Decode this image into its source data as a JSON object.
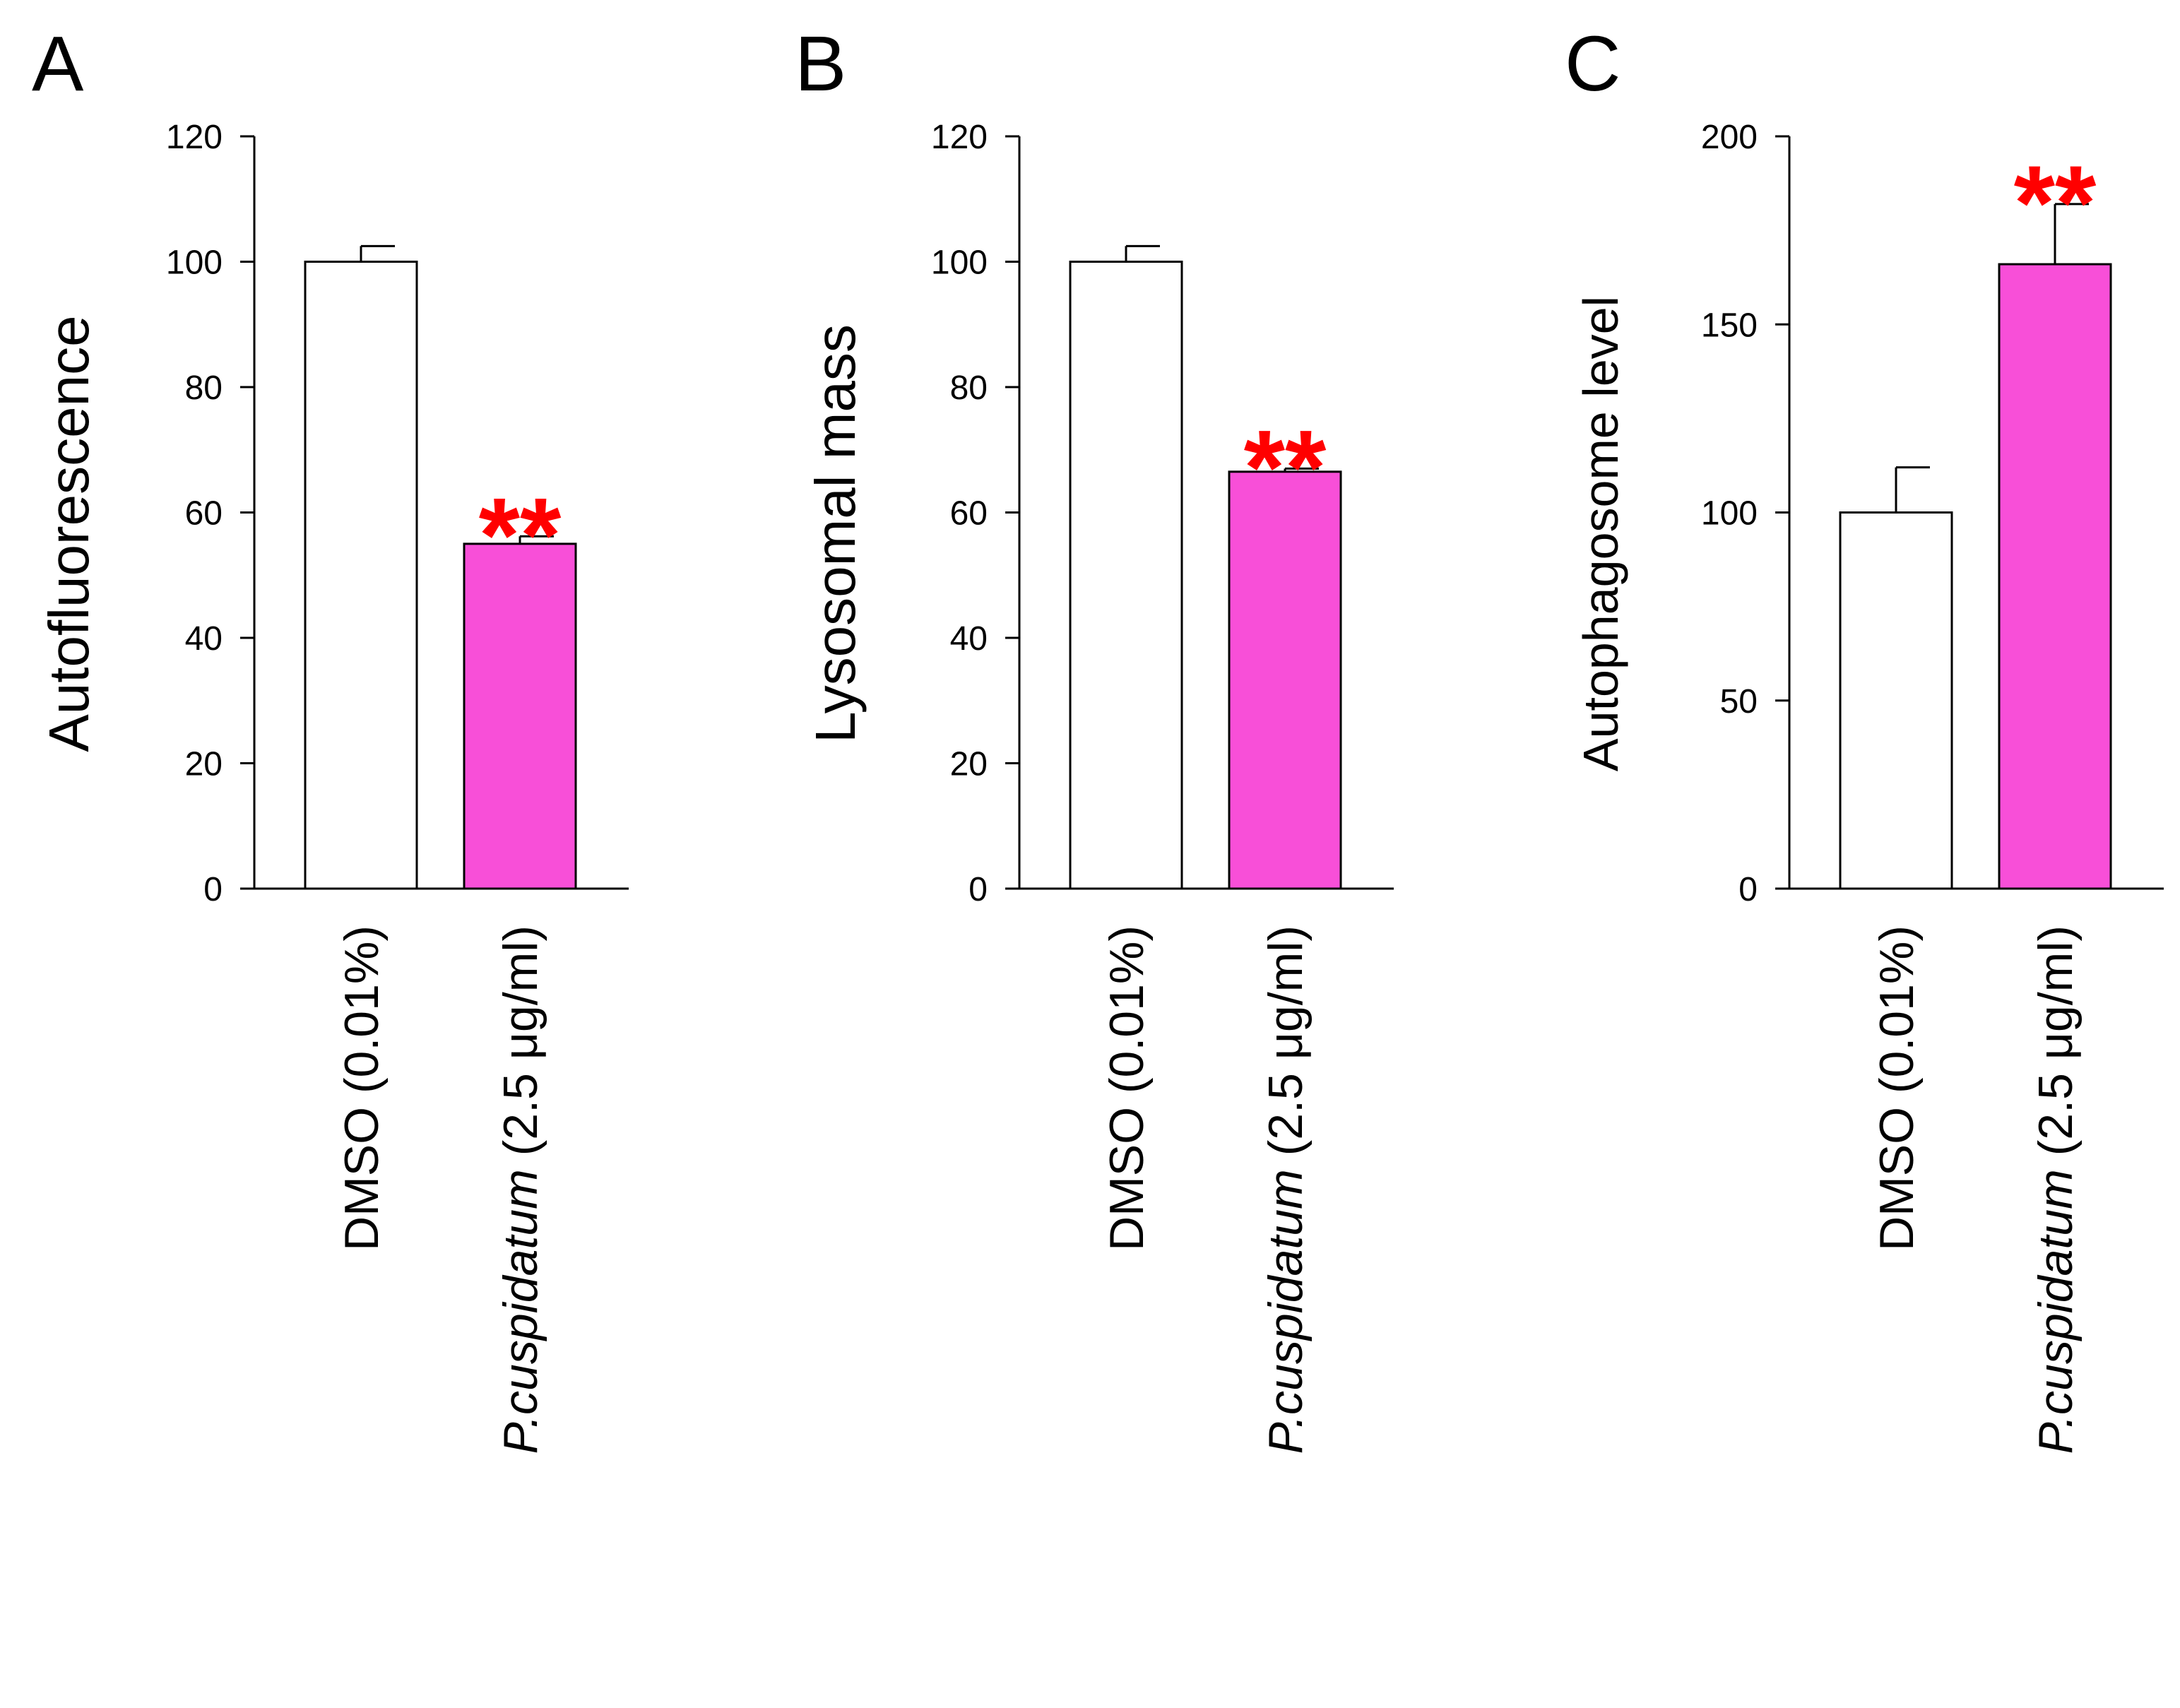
{
  "colors": {
    "control": "#ffffff",
    "treatment": "#f84fd8",
    "significance": "#ff0000",
    "axis": "#000000"
  },
  "chart_data": [
    {
      "panel": "A",
      "type": "bar",
      "ylabel": "Autofluorescence",
      "ylim": [
        0,
        120
      ],
      "yticks": [
        0,
        20,
        40,
        60,
        80,
        100,
        120
      ],
      "categories": [
        {
          "prefix": "",
          "italic": "",
          "suffix": "DMSO (0.01%)"
        },
        {
          "prefix": "",
          "italic": "P.cuspidatum",
          "suffix": " (2.5 μg/ml)"
        }
      ],
      "values": [
        100,
        55
      ],
      "errors": [
        2.5,
        1.2
      ],
      "significance": [
        "",
        "**"
      ]
    },
    {
      "panel": "B",
      "type": "bar",
      "ylabel": "Lysosomal mass",
      "ylim": [
        0,
        120
      ],
      "yticks": [
        0,
        20,
        40,
        60,
        80,
        100,
        120
      ],
      "categories": [
        {
          "prefix": "",
          "italic": "",
          "suffix": "DMSO (0.01%)"
        },
        {
          "prefix": "",
          "italic": "P.cuspidatum",
          "suffix": " (2.5 μg/ml)"
        }
      ],
      "values": [
        100,
        66.5
      ],
      "errors": [
        2.5,
        0.5
      ],
      "significance": [
        "",
        "**"
      ]
    },
    {
      "panel": "C",
      "type": "bar",
      "ylabel": "Autophagosome level",
      "ylim": [
        0,
        200
      ],
      "yticks": [
        0,
        50,
        100,
        150,
        200
      ],
      "categories": [
        {
          "prefix": "",
          "italic": "",
          "suffix": "DMSO (0.01%)"
        },
        {
          "prefix": "",
          "italic": "P.cuspidatum",
          "suffix": " (2.5 μg/ml)"
        }
      ],
      "values": [
        100,
        166
      ],
      "errors": [
        12,
        16
      ],
      "significance": [
        "",
        "**"
      ]
    }
  ]
}
